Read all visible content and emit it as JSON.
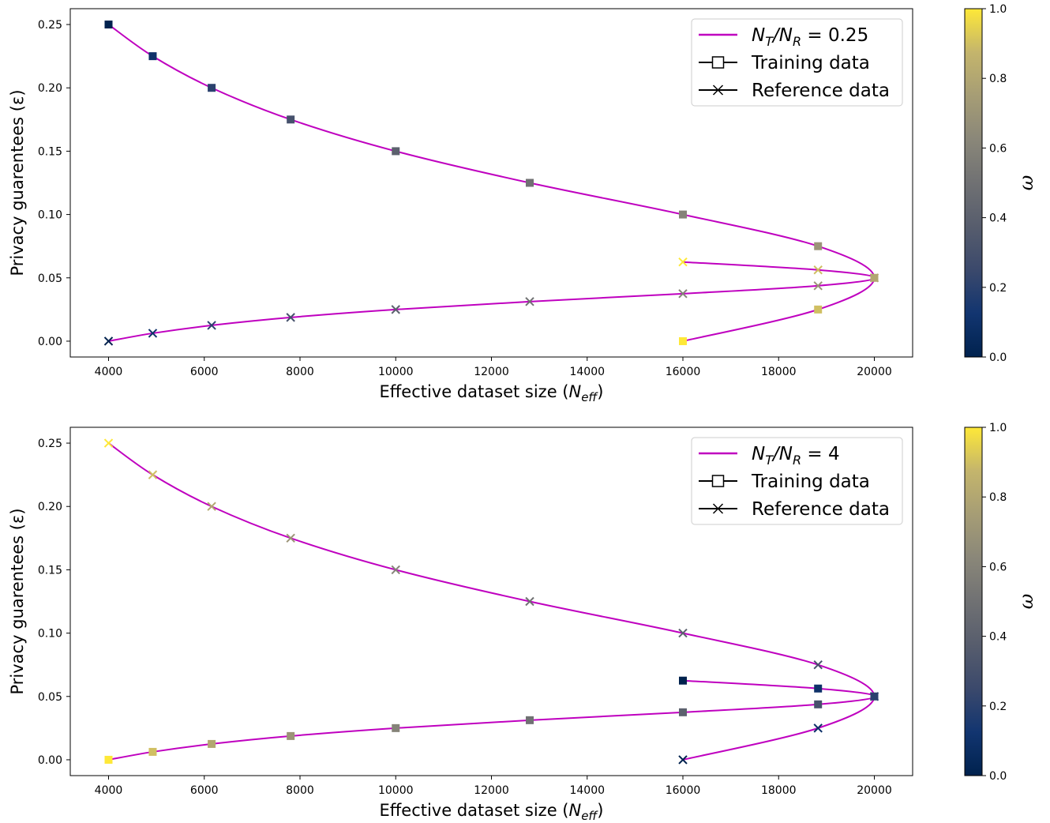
{
  "chart_data": [
    {
      "type": "line",
      "xlabel": "Effective dataset size (N_eff)",
      "ylabel": "Privacy guarentees (ε)",
      "xlim": [
        3200,
        20800
      ],
      "ylim": [
        -0.0125,
        0.2625
      ],
      "xticks": [
        4000,
        6000,
        8000,
        10000,
        12000,
        14000,
        16000,
        18000,
        20000
      ],
      "yticks": [
        0.0,
        0.05,
        0.1,
        0.15,
        0.2,
        0.25
      ],
      "xticklabels": [
        "4000",
        "6000",
        "8000",
        "10000",
        "12000",
        "14000",
        "16000",
        "18000",
        "20000"
      ],
      "yticklabels": [
        "0.00",
        "0.05",
        "0.10",
        "0.15",
        "0.20",
        "0.25"
      ],
      "legend_position": "top-right",
      "legend": [
        {
          "label_main": "N",
          "label_sub1": "T",
          "label_mid": "/N",
          "label_sub2": "R",
          "label_end": " = 0.25",
          "marker": "line",
          "color": "#bf00bf"
        },
        {
          "label": "Training data",
          "marker": "square"
        },
        {
          "label": "Reference data",
          "marker": "x"
        }
      ],
      "colorbar": {
        "label": "ω",
        "range": [
          0.0,
          1.0
        ],
        "ticks": [
          "0.0",
          "0.2",
          "0.4",
          "0.6",
          "0.8",
          "1.0"
        ]
      },
      "line_color": "#bf00bf",
      "series": [
        {
          "name": "Training data",
          "marker": "square",
          "x": [
            4000,
            4923,
            6154,
            7805,
            10000,
            12800,
            16000,
            18824,
            20000,
            18824,
            16000
          ],
          "y": [
            0.25,
            0.225,
            0.2,
            0.175,
            0.15,
            0.125,
            0.1,
            0.075,
            0.05,
            0.025,
            0.0
          ],
          "w": [
            0.0,
            0.1,
            0.2,
            0.3,
            0.4,
            0.5,
            0.6,
            0.7,
            0.8,
            0.9,
            1.0
          ]
        },
        {
          "name": "Reference data",
          "marker": "x",
          "x": [
            4000,
            4923,
            6154,
            7805,
            10000,
            12800,
            16000,
            18824,
            20000,
            18824,
            16000
          ],
          "y": [
            0.0,
            0.00625,
            0.0125,
            0.01875,
            0.025,
            0.03125,
            0.0375,
            0.04375,
            0.05,
            0.05625,
            0.0625
          ],
          "w": [
            0.0,
            0.1,
            0.2,
            0.3,
            0.4,
            0.5,
            0.6,
            0.7,
            0.8,
            0.9,
            1.0
          ]
        }
      ]
    },
    {
      "type": "line",
      "xlabel": "Effective dataset size (N_eff)",
      "ylabel": "Privacy guarentees (ε)",
      "xlim": [
        3200,
        20800
      ],
      "ylim": [
        -0.0125,
        0.2625
      ],
      "xticks": [
        4000,
        6000,
        8000,
        10000,
        12000,
        14000,
        16000,
        18000,
        20000
      ],
      "yticks": [
        0.0,
        0.05,
        0.1,
        0.15,
        0.2,
        0.25
      ],
      "xticklabels": [
        "4000",
        "6000",
        "8000",
        "10000",
        "12000",
        "14000",
        "16000",
        "18000",
        "20000"
      ],
      "yticklabels": [
        "0.00",
        "0.05",
        "0.10",
        "0.15",
        "0.20",
        "0.25"
      ],
      "legend_position": "top-right",
      "legend": [
        {
          "label_main": "N",
          "label_sub1": "T",
          "label_mid": "/N",
          "label_sub2": "R",
          "label_end": " = 4",
          "marker": "line",
          "color": "#bf00bf"
        },
        {
          "label": "Training data",
          "marker": "square"
        },
        {
          "label": "Reference data",
          "marker": "x"
        }
      ],
      "colorbar": {
        "label": "ω",
        "range": [
          0.0,
          1.0
        ],
        "ticks": [
          "0.0",
          "0.2",
          "0.4",
          "0.6",
          "0.8",
          "1.0"
        ]
      },
      "line_color": "#bf00bf",
      "series": [
        {
          "name": "Reference data",
          "marker": "x",
          "x": [
            4000,
            4923,
            6154,
            7805,
            10000,
            12800,
            16000,
            18824,
            20000,
            18824,
            16000
          ],
          "y": [
            0.25,
            0.225,
            0.2,
            0.175,
            0.15,
            0.125,
            0.1,
            0.075,
            0.05,
            0.025,
            0.0
          ],
          "w": [
            1.0,
            0.9,
            0.8,
            0.7,
            0.6,
            0.5,
            0.4,
            0.3,
            0.2,
            0.1,
            0.0
          ]
        },
        {
          "name": "Training data",
          "marker": "square",
          "x": [
            4000,
            4923,
            6154,
            7805,
            10000,
            12800,
            16000,
            18824,
            20000,
            18824,
            16000
          ],
          "y": [
            0.0,
            0.00625,
            0.0125,
            0.01875,
            0.025,
            0.03125,
            0.0375,
            0.04375,
            0.05,
            0.05625,
            0.0625
          ],
          "w": [
            1.0,
            0.9,
            0.8,
            0.7,
            0.6,
            0.5,
            0.4,
            0.3,
            0.2,
            0.1,
            0.0
          ]
        }
      ]
    }
  ]
}
